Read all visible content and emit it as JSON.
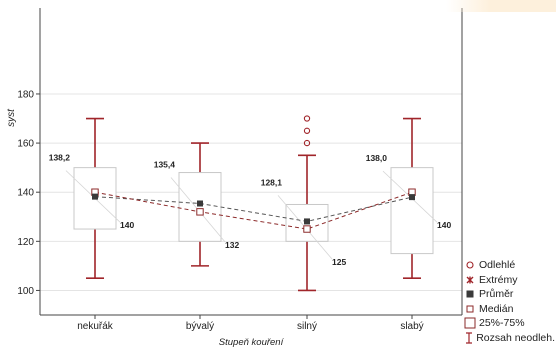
{
  "chart_data": {
    "type": "box",
    "xlabel": "Stupeň kouření",
    "ylabel": "syst",
    "ylim": [
      90,
      215
    ],
    "yticks": [
      100,
      120,
      140,
      160,
      180
    ],
    "categories": [
      "nekuřák",
      "bývalý",
      "silný",
      "slabý"
    ],
    "boxes": [
      {
        "category": "nekuřák",
        "whisker_low": 105,
        "q1": 125,
        "median": 140,
        "q3": 150,
        "whisker_high": 170,
        "mean": 138.2,
        "mean_label": "138,2",
        "median_label": "140",
        "outliers": []
      },
      {
        "category": "bývalý",
        "whisker_low": 110,
        "q1": 120,
        "median": 132,
        "q3": 148,
        "whisker_high": 160,
        "mean": 135.4,
        "mean_label": "135,4",
        "median_label": "132",
        "outliers": []
      },
      {
        "category": "silný",
        "whisker_low": 100,
        "q1": 120,
        "median": 125,
        "q3": 135,
        "whisker_high": 155,
        "mean": 128.1,
        "mean_label": "128,1",
        "median_label": "125",
        "outliers": [
          160,
          165,
          170
        ]
      },
      {
        "category": "slabý",
        "whisker_low": 105,
        "q1": 115,
        "median": 140,
        "q3": 150,
        "whisker_high": 170,
        "mean": 138.0,
        "mean_label": "138,0",
        "median_label": "140",
        "outliers": []
      }
    ],
    "legend": [
      {
        "label": "Odlehlé",
        "symbol": "circle-open"
      },
      {
        "label": "Extrémy",
        "symbol": "star"
      },
      {
        "label": "Průměr",
        "symbol": "square-filled"
      },
      {
        "label": "Medián",
        "symbol": "square-open"
      },
      {
        "label": "25%-75%",
        "symbol": "box"
      },
      {
        "label": "Rozsah neodleh.",
        "symbol": "whisker"
      }
    ],
    "colors": {
      "whisker": "#a0252a",
      "mean": "#3a3a3a",
      "median": "#8c2a2a",
      "outlier": "#a0252a",
      "box_edge": "#c8c8c8",
      "grid": "#e4e4e4"
    }
  }
}
